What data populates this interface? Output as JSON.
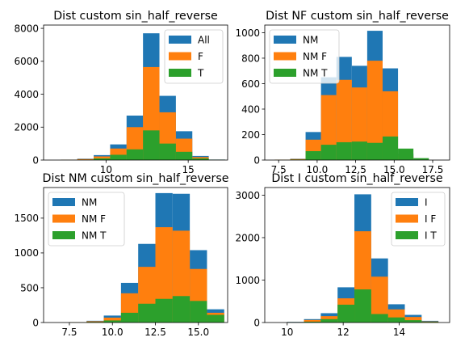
{
  "colors": {
    "blue": "#1f77b4",
    "orange": "#ff7f0e",
    "green": "#2ca02c"
  },
  "chart_data": [
    {
      "type": "bar",
      "title": "Dist custom sin_half_reverse",
      "xlim": [
        6.2,
        17.4
      ],
      "ylim": [
        0,
        8200
      ],
      "xticks": [
        10,
        15
      ],
      "yticks": [
        0,
        2000,
        4000,
        6000,
        8000
      ],
      "legend": "top-right",
      "bins": [
        [
          7.25,
          8.25
        ],
        [
          8.25,
          9.25
        ],
        [
          9.25,
          10.25
        ],
        [
          10.25,
          11.25
        ],
        [
          11.25,
          12.25
        ],
        [
          12.25,
          13.25
        ],
        [
          13.25,
          14.25
        ],
        [
          14.25,
          15.25
        ],
        [
          15.25,
          16.25
        ],
        [
          16.25,
          17.25
        ]
      ],
      "series": [
        {
          "name": "All",
          "color": "blue",
          "values": [
            20,
            80,
            300,
            950,
            2700,
            7700,
            3900,
            1750,
            250,
            30
          ]
        },
        {
          "name": "F",
          "color": "orange",
          "values": [
            15,
            60,
            220,
            700,
            2000,
            5650,
            2900,
            1300,
            180,
            20
          ]
        },
        {
          "name": "T",
          "color": "green",
          "values": [
            5,
            20,
            100,
            320,
            650,
            1800,
            1000,
            500,
            100,
            15
          ]
        }
      ]
    },
    {
      "type": "bar",
      "title": "Dist NF custom sin_half_reverse",
      "xlim": [
        6.6,
        18.6
      ],
      "ylim": [
        0,
        1060
      ],
      "xticks": [
        7.5,
        10.0,
        12.5,
        15.0,
        17.5
      ],
      "yticks": [
        0,
        200,
        400,
        600,
        800,
        1000
      ],
      "legend": "top-left",
      "bins": [
        [
          7.25,
          8.25
        ],
        [
          8.25,
          9.25
        ],
        [
          9.25,
          10.25
        ],
        [
          10.25,
          11.25
        ],
        [
          11.25,
          12.25
        ],
        [
          12.25,
          13.25
        ],
        [
          13.25,
          14.25
        ],
        [
          14.25,
          15.25
        ],
        [
          15.25,
          16.25
        ],
        [
          16.25,
          17.25
        ]
      ],
      "series": [
        {
          "name": "NM",
          "color": "blue",
          "values": [
            3,
            10,
            220,
            650,
            810,
            740,
            1015,
            720,
            50,
            5
          ]
        },
        {
          "name": "NM F",
          "color": "orange",
          "values": [
            3,
            8,
            160,
            510,
            630,
            570,
            780,
            540,
            35,
            4
          ]
        },
        {
          "name": "NM T",
          "color": "green",
          "values": [
            1,
            4,
            70,
            120,
            140,
            145,
            135,
            185,
            90,
            15
          ]
        }
      ]
    },
    {
      "type": "bar",
      "title": "Dist NM custom sin_half_reverse",
      "xlim": [
        6.0,
        16.7
      ],
      "ylim": [
        0,
        1940
      ],
      "xticks": [
        7.5,
        10.0,
        12.5,
        15.0
      ],
      "yticks": [
        0,
        500,
        1000,
        1500
      ],
      "legend": "top-left",
      "bins": [
        [
          7.5,
          8.5
        ],
        [
          8.5,
          9.5
        ],
        [
          9.5,
          10.5
        ],
        [
          10.5,
          11.5
        ],
        [
          11.5,
          12.5
        ],
        [
          12.5,
          13.5
        ],
        [
          13.5,
          14.5
        ],
        [
          14.5,
          15.5
        ],
        [
          15.5,
          16.5
        ]
      ],
      "series": [
        {
          "name": "NM",
          "color": "blue",
          "values": [
            5,
            25,
            100,
            570,
            1130,
            1860,
            1850,
            1040,
            190
          ]
        },
        {
          "name": "NM F",
          "color": "orange",
          "values": [
            4,
            18,
            70,
            420,
            800,
            1370,
            1320,
            770,
            140
          ]
        },
        {
          "name": "NM T",
          "color": "green",
          "values": [
            2,
            8,
            30,
            140,
            270,
            340,
            380,
            310,
            110
          ]
        }
      ]
    },
    {
      "type": "bar",
      "title": "Dist I custom sin_half_reverse",
      "xlim": [
        9.2,
        15.8
      ],
      "ylim": [
        0,
        3180
      ],
      "xticks": [
        10,
        12,
        14
      ],
      "yticks": [
        0,
        1000,
        2000,
        3000
      ],
      "legend": "top-right",
      "bins": [
        [
          10.0,
          10.6
        ],
        [
          10.6,
          11.2
        ],
        [
          11.2,
          11.8
        ],
        [
          11.8,
          12.4
        ],
        [
          12.4,
          13.0
        ],
        [
          13.0,
          13.6
        ],
        [
          13.6,
          14.2
        ],
        [
          14.2,
          14.8
        ],
        [
          14.8,
          15.4
        ]
      ],
      "series": [
        {
          "name": "I",
          "color": "blue",
          "values": [
            15,
            80,
            220,
            830,
            3020,
            1510,
            430,
            180,
            40
          ]
        },
        {
          "name": "I F",
          "color": "orange",
          "values": [
            10,
            60,
            150,
            570,
            2150,
            1080,
            310,
            130,
            25
          ]
        },
        {
          "name": "I T",
          "color": "green",
          "values": [
            5,
            20,
            80,
            420,
            780,
            200,
            120,
            55,
            15
          ]
        }
      ]
    }
  ]
}
